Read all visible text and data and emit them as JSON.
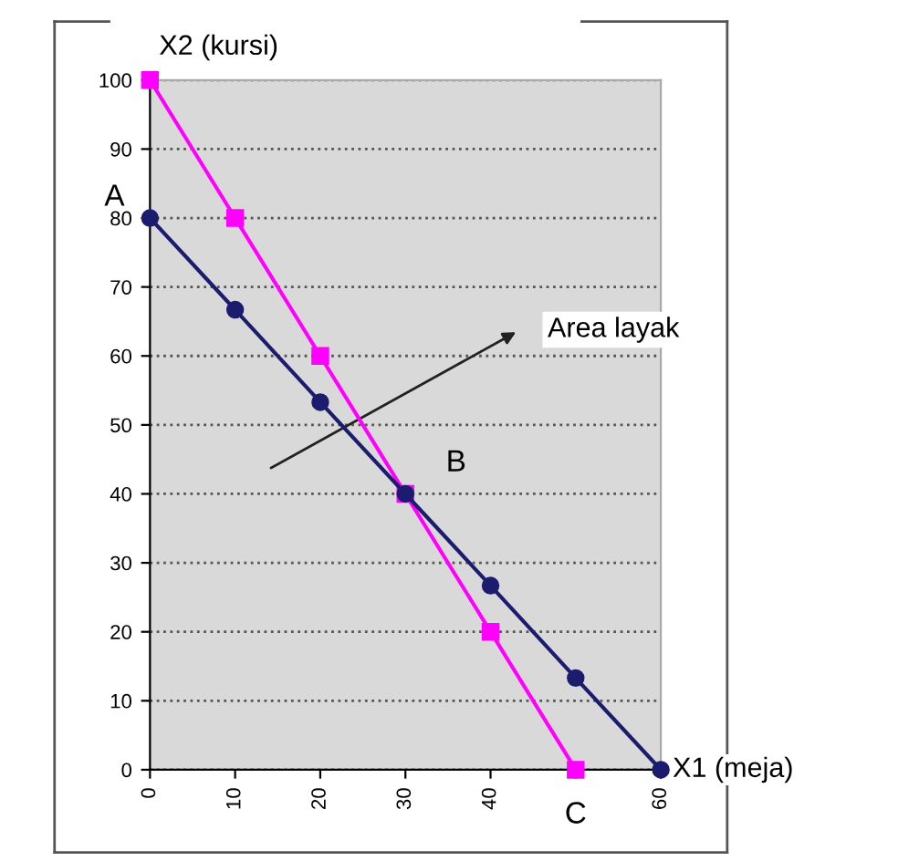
{
  "chart_data": {
    "type": "line",
    "xlabel": "X1 (meja)",
    "ylabel": "X2 (kursi)",
    "series": [
      {
        "color": "#1c1c6e",
        "marker": "circle",
        "x": [
          0,
          10,
          20,
          30,
          40,
          50,
          60
        ],
        "values": [
          80,
          66.7,
          53.3,
          40,
          26.7,
          13.3,
          0
        ]
      },
      {
        "color": "#ff00ff",
        "marker": "square",
        "x": [
          0,
          10,
          20,
          30,
          40,
          50
        ],
        "values": [
          100,
          80,
          60,
          40,
          20,
          0
        ]
      }
    ],
    "xlim": [
      0,
      60
    ],
    "xticks": [
      0,
      10,
      20,
      30,
      40,
      {
        "value": 50,
        "label": null
      },
      60
    ],
    "ylim": [
      0,
      100
    ],
    "yticks": [
      0,
      10,
      20,
      30,
      40,
      50,
      60,
      70,
      80,
      90,
      100
    ],
    "grid": "y",
    "annotations": [
      {
        "text": "A",
        "x": 0,
        "y": 80
      },
      {
        "text": "B",
        "x": 30,
        "y": 40
      },
      {
        "text": "C",
        "x": 50,
        "y": 0
      },
      "Area layak"
    ]
  }
}
